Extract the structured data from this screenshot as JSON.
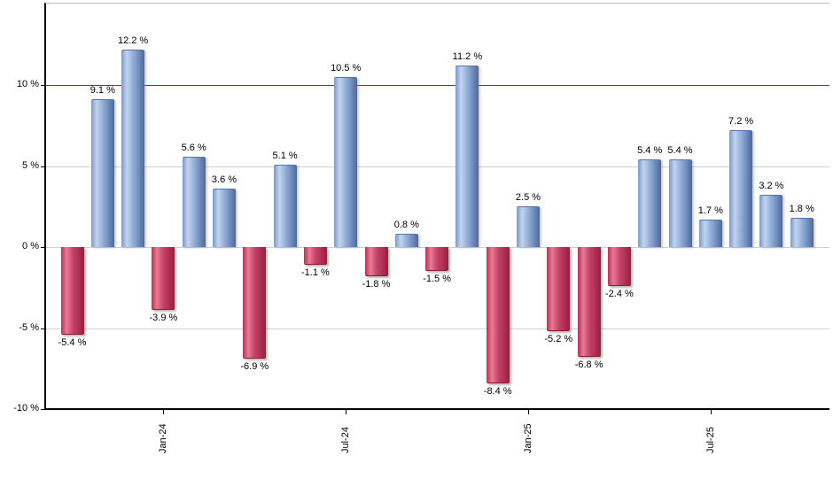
{
  "chart_data": {
    "type": "bar",
    "description": "Monthly returns bar chart, positive months blue, negative months red",
    "values": [
      -5.4,
      9.1,
      12.2,
      -3.9,
      5.6,
      3.6,
      -6.9,
      5.1,
      -1.1,
      10.5,
      -1.8,
      0.8,
      -1.5,
      11.2,
      -8.4,
      2.5,
      -5.2,
      -6.8,
      -2.4,
      5.4,
      5.4,
      1.7,
      7.2,
      3.2,
      1.8
    ],
    "value_label_suffix": " %",
    "y_axis": {
      "ticks": [
        {
          "value": 10,
          "label": "10 %"
        },
        {
          "value": 5,
          "label": "5 %"
        },
        {
          "value": 0,
          "label": "0 %"
        },
        {
          "value": -5,
          "label": "-5 %"
        },
        {
          "value": -10,
          "label": "-10 %"
        }
      ],
      "range": [
        -10,
        15.1
      ]
    },
    "x_axis": {
      "ticks": [
        {
          "index": 3,
          "label": "Jan-24"
        },
        {
          "index": 9,
          "label": "Jul-24"
        },
        {
          "index": 15,
          "label": "Jan-25"
        },
        {
          "index": 21,
          "label": "Jul-25"
        }
      ]
    },
    "reference_line": {
      "value": 10,
      "color": "#008000"
    },
    "grid": true,
    "legend": false,
    "colors": {
      "positive_bar_gradient": [
        "#7d99c8",
        "#c2d4ee",
        "#93afd9",
        "#4d699c"
      ],
      "negative_bar_gradient": [
        "#b5335a",
        "#ea7a93",
        "#c54568",
        "#9a1c3e"
      ],
      "axis": "#000000",
      "grid": "#d0d0d0",
      "plot_border_top": "#b8b8b8",
      "label_text": "#000000"
    }
  }
}
